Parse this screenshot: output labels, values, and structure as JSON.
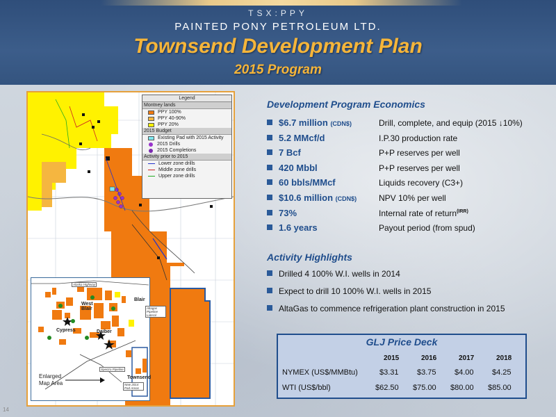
{
  "header": {
    "ticker": "TSX:PPY",
    "company": "PAINTED PONY PETROLEUM LTD.",
    "title": "Townsend Development Plan",
    "subtitle": "2015 Program"
  },
  "map": {
    "legend": {
      "title": "Legend",
      "montney_section": "Montney lands",
      "montney_items": [
        {
          "label": "PPY 100%",
          "color": "#f07a10"
        },
        {
          "label": "PPY 40-90%",
          "color": "#f5b640"
        },
        {
          "label": "PPY 20%",
          "color": "#fff200"
        }
      ],
      "budget_section": "2015 Budget",
      "budget_items": [
        {
          "label": "Existing Pad with 2015 Activity",
          "color": "#7fe8f0"
        },
        {
          "label": "2015 Drills",
          "color": "#9933cc"
        },
        {
          "label": "2015 Completions",
          "color": "#7a2ab0"
        }
      ],
      "activity_section": "Activity prior to 2015",
      "activity_items": [
        {
          "label": "Lower zone drills",
          "color": "#2233cc"
        },
        {
          "label": "Middle zone drills",
          "color": "#cc2222"
        },
        {
          "label": "Upper zone drills",
          "color": "#22aa22"
        }
      ]
    },
    "inset": {
      "labels": {
        "blair": "Blair",
        "west_blair": "West\nBlair",
        "cypress": "Cypress",
        "daiber": "Daiber",
        "townsend": "Townsend"
      },
      "roads": {
        "alaska": "Alaska Highway",
        "altagas": "Altagas Pipeline Lateral",
        "spectra": "Spectra Pipeline",
        "new_2014": "New 2014 Pad Areas"
      }
    },
    "enlarged_label": "Enlarged\nMap Area"
  },
  "economics": {
    "title": "Development Program Economics",
    "rows": [
      {
        "value": "$6.7 million",
        "unit": "(CDN$)",
        "desc": "Drill, complete, and equip (2015 ↓10%)"
      },
      {
        "value": "5.2 MMcf/d",
        "unit": "",
        "desc": "I.P.30 production rate"
      },
      {
        "value": "7 Bcf",
        "unit": "",
        "desc": "P+P reserves per well"
      },
      {
        "value": "420 Mbbl",
        "unit": "",
        "desc": "P+P reserves per well"
      },
      {
        "value": "60 bbls/MMcf",
        "unit": "",
        "desc": "Liquids recovery (C3+)"
      },
      {
        "value": "$10.6 million",
        "unit": "(CDN$)",
        "desc": "NPV 10% per well"
      },
      {
        "value": "73%",
        "unit": "",
        "desc": "Internal rate of return",
        "sup": "(IRR)"
      },
      {
        "value": "1.6 years",
        "unit": "",
        "desc": "Payout period (from spud)"
      }
    ]
  },
  "activity": {
    "title": "Activity Highlights",
    "items": [
      "Drilled 4 100% W.I. wells in 2014",
      "Expect to drill 10 100% W.I. wells in 2015",
      "AltaGas to commence refrigeration plant construction in 2015"
    ]
  },
  "glj": {
    "title": "GLJ Price Deck",
    "years": [
      "2015",
      "2016",
      "2017",
      "2018"
    ],
    "rows": [
      {
        "label": "NYMEX (US$/MMBtu)",
        "values": [
          "$3.31",
          "$3.75",
          "$4.00",
          "$4.25"
        ]
      },
      {
        "label": "WTI (US$/bbl)",
        "values": [
          "$62.50",
          "$75.00",
          "$80.00",
          "$85.00"
        ]
      }
    ]
  },
  "page_number": "14"
}
